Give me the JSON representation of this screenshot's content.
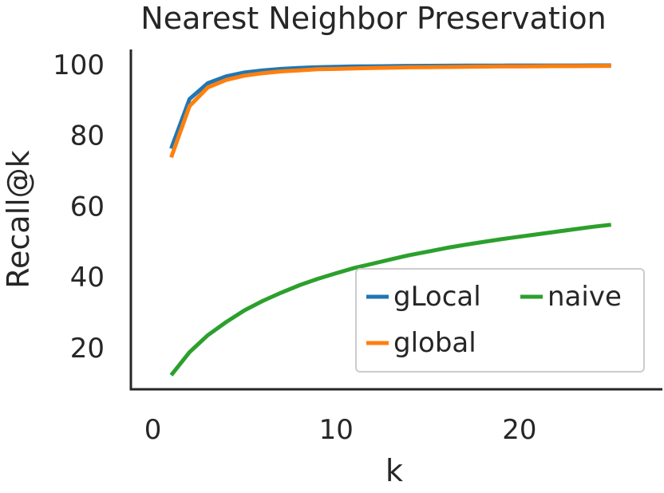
{
  "chart_data": {
    "type": "line",
    "title": "Nearest Neighbor Preservation",
    "xlabel": "k",
    "ylabel": "Recall@k",
    "xlim": [
      -1.2,
      27.8
    ],
    "ylim": [
      8.5,
      104.5
    ],
    "x_ticks": [
      0,
      10,
      20
    ],
    "x_tick_labels": [
      "0",
      "10",
      "20"
    ],
    "y_ticks": [
      20,
      40,
      60,
      80,
      100
    ],
    "y_tick_labels": [
      "20",
      "40",
      "60",
      "80",
      "100"
    ],
    "grid": false,
    "legend_position": "lower-right",
    "x": [
      1,
      2,
      3,
      4,
      5,
      6,
      7,
      8,
      9,
      10,
      11,
      12,
      13,
      14,
      15,
      16,
      17,
      18,
      19,
      20,
      21,
      22,
      23,
      24,
      25
    ],
    "series": [
      {
        "name": "gLocal",
        "color": "#1f77b4",
        "values": [
          76.5,
          90.5,
          95.0,
          96.9,
          98.0,
          98.6,
          99.0,
          99.3,
          99.5,
          99.6,
          99.7,
          99.75,
          99.8,
          99.85,
          99.88,
          99.9,
          99.92,
          99.94,
          99.95,
          99.96,
          99.97,
          99.98,
          99.98,
          99.99,
          100.0
        ]
      },
      {
        "name": "global",
        "color": "#ff7f0e",
        "values": [
          74.0,
          88.5,
          93.8,
          95.9,
          97.1,
          97.8,
          98.3,
          98.6,
          98.9,
          99.0,
          99.15,
          99.25,
          99.35,
          99.45,
          99.5,
          99.55,
          99.6,
          99.65,
          99.7,
          99.72,
          99.75,
          99.78,
          99.8,
          99.82,
          99.85
        ]
      },
      {
        "name": "naive",
        "color": "#2ca02c",
        "values": [
          12.5,
          19.0,
          23.8,
          27.5,
          30.8,
          33.5,
          35.8,
          37.9,
          39.7,
          41.3,
          42.8,
          44.0,
          45.2,
          46.4,
          47.4,
          48.4,
          49.3,
          50.1,
          50.9,
          51.6,
          52.3,
          53.0,
          53.7,
          54.4,
          55.0
        ]
      }
    ]
  }
}
